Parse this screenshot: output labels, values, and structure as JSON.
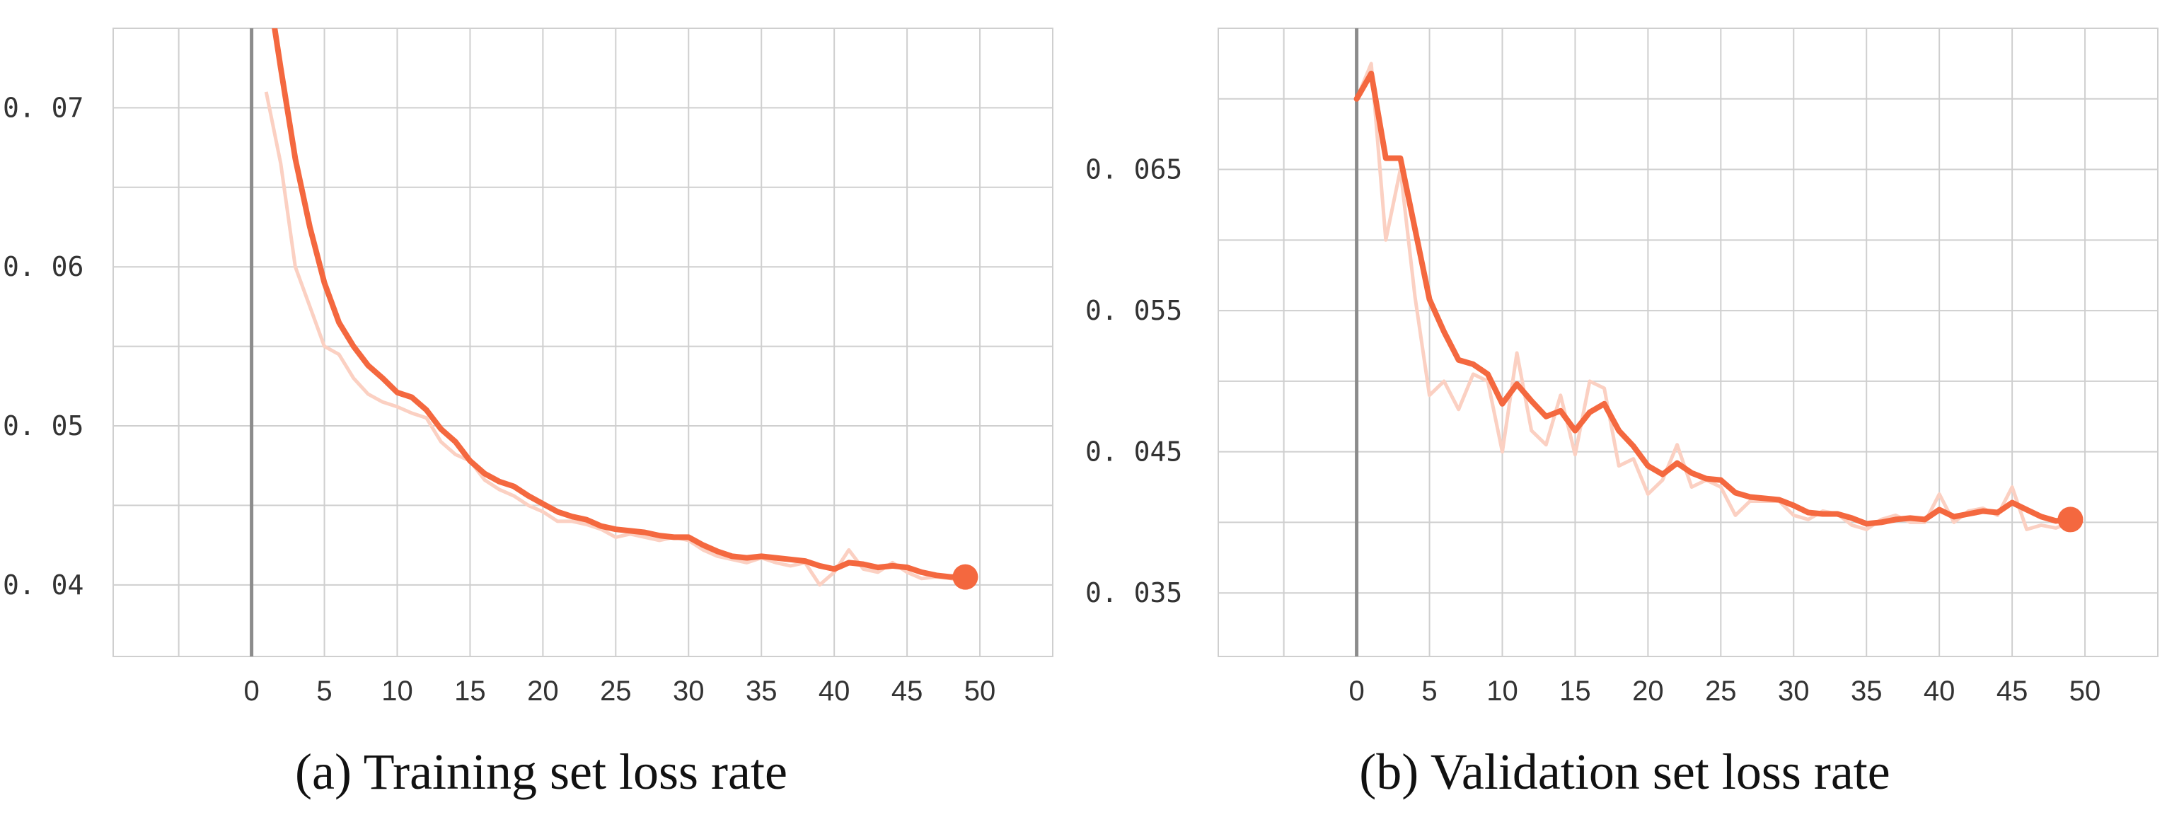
{
  "chart_data": [
    {
      "type": "line",
      "caption": "(a) Training set loss rate",
      "title": "",
      "xlabel": "",
      "ylabel": "",
      "xlim": [
        -9.5,
        55
      ],
      "ylim": [
        0.0355,
        0.075
      ],
      "grid": true,
      "x_ticks": [
        0,
        5,
        10,
        15,
        20,
        25,
        30,
        35,
        40,
        45,
        50
      ],
      "x_tick_labels": [
        "0",
        "5",
        "10",
        "15",
        "20",
        "25",
        "30",
        "35",
        "40",
        "45",
        "50"
      ],
      "y_ticks": [
        0.04,
        0.05,
        0.06,
        0.07
      ],
      "y_tick_labels": [
        "0. 04",
        "0. 05",
        "0. 06",
        "0. 07"
      ],
      "colors": {
        "line": "#F4683F",
        "raw": "#FBD0C2",
        "grid": "#cfcfcf",
        "zero_axis": "#8c8c8c"
      },
      "series": [
        {
          "role": "smoothed",
          "x": [
            1.5,
            2,
            3,
            4,
            5,
            6,
            7,
            8,
            9,
            10,
            11,
            12,
            13,
            14,
            15,
            16,
            17,
            18,
            19,
            20,
            21,
            22,
            23,
            24,
            25,
            26,
            27,
            28,
            29,
            30,
            31,
            32,
            33,
            34,
            35,
            36,
            37,
            38,
            39,
            40,
            41,
            42,
            43,
            44,
            45,
            46,
            47,
            48,
            49
          ],
          "y": [
            0.0755,
            0.0725,
            0.0668,
            0.0625,
            0.059,
            0.0565,
            0.055,
            0.0538,
            0.053,
            0.0521,
            0.0518,
            0.051,
            0.0498,
            0.049,
            0.0478,
            0.047,
            0.0465,
            0.0462,
            0.0456,
            0.0451,
            0.0446,
            0.0443,
            0.0441,
            0.0437,
            0.0435,
            0.0434,
            0.0433,
            0.0431,
            0.043,
            0.043,
            0.0425,
            0.0421,
            0.0418,
            0.0417,
            0.0418,
            0.0417,
            0.0416,
            0.0415,
            0.0412,
            0.041,
            0.0414,
            0.0413,
            0.0411,
            0.0412,
            0.0411,
            0.0408,
            0.0406,
            0.0405,
            0.0405
          ]
        },
        {
          "role": "raw",
          "x": [
            1,
            2,
            3,
            4,
            5,
            6,
            7,
            8,
            9,
            10,
            11,
            12,
            13,
            14,
            15,
            16,
            17,
            18,
            19,
            20,
            21,
            22,
            23,
            24,
            25,
            26,
            27,
            28,
            29,
            30,
            31,
            32,
            33,
            34,
            35,
            36,
            37,
            38,
            39,
            40,
            41,
            42,
            43,
            44,
            45,
            46,
            47,
            48,
            49
          ],
          "y": [
            0.071,
            0.0665,
            0.06,
            0.0575,
            0.055,
            0.0545,
            0.053,
            0.052,
            0.0515,
            0.0512,
            0.0508,
            0.0505,
            0.049,
            0.0482,
            0.0478,
            0.0466,
            0.046,
            0.0456,
            0.045,
            0.0446,
            0.044,
            0.044,
            0.0438,
            0.0435,
            0.043,
            0.0432,
            0.043,
            0.0428,
            0.043,
            0.0428,
            0.0422,
            0.0418,
            0.0416,
            0.0414,
            0.0417,
            0.0414,
            0.0412,
            0.0414,
            0.04,
            0.0408,
            0.0422,
            0.041,
            0.0408,
            0.0414,
            0.0408,
            0.0404,
            0.0405,
            0.0404,
            0.0402
          ]
        }
      ],
      "end_marker": {
        "x": 49,
        "y": 0.0405
      }
    },
    {
      "type": "line",
      "caption": "(b) Validation set loss rate",
      "title": "",
      "xlabel": "",
      "ylabel": "",
      "xlim": [
        -9.5,
        55
      ],
      "ylim": [
        0.0305,
        0.075
      ],
      "grid": true,
      "x_ticks": [
        0,
        5,
        10,
        15,
        20,
        25,
        30,
        35,
        40,
        45,
        50
      ],
      "x_tick_labels": [
        "0",
        "5",
        "10",
        "15",
        "20",
        "25",
        "30",
        "35",
        "40",
        "45",
        "50"
      ],
      "y_ticks": [
        0.035,
        0.045,
        0.055,
        0.065
      ],
      "y_tick_labels": [
        "0. 035",
        "0. 045",
        "0. 055",
        "0. 065"
      ],
      "colors": {
        "line": "#F4683F",
        "raw": "#FBD0C2",
        "grid": "#cfcfcf",
        "zero_axis": "#8c8c8c"
      },
      "series": [
        {
          "role": "smoothed",
          "x": [
            0,
            1,
            2,
            3,
            4,
            5,
            6,
            7,
            8,
            9,
            10,
            11,
            12,
            13,
            14,
            15,
            16,
            17,
            18,
            19,
            20,
            21,
            22,
            23,
            24,
            25,
            26,
            27,
            28,
            29,
            30,
            31,
            32,
            33,
            34,
            35,
            36,
            37,
            38,
            39,
            40,
            41,
            42,
            43,
            44,
            45,
            46,
            47,
            48,
            49
          ],
          "y": [
            0.07,
            0.0718,
            0.0658,
            0.0658,
            0.0608,
            0.0558,
            0.0535,
            0.0515,
            0.0512,
            0.0505,
            0.0484,
            0.0498,
            0.0486,
            0.0475,
            0.0479,
            0.0465,
            0.0478,
            0.0484,
            0.0465,
            0.0454,
            0.044,
            0.0434,
            0.0442,
            0.0435,
            0.0431,
            0.043,
            0.0421,
            0.0418,
            0.0417,
            0.0416,
            0.0412,
            0.0407,
            0.0406,
            0.0406,
            0.0403,
            0.0399,
            0.04,
            0.0402,
            0.0403,
            0.0402,
            0.0409,
            0.0404,
            0.0406,
            0.0408,
            0.0407,
            0.0414,
            0.0409,
            0.0404,
            0.0401,
            0.0402
          ]
        },
        {
          "role": "raw",
          "x": [
            0,
            1,
            2,
            3,
            4,
            5,
            6,
            7,
            8,
            9,
            10,
            11,
            12,
            13,
            14,
            15,
            16,
            17,
            18,
            19,
            20,
            21,
            22,
            23,
            24,
            25,
            26,
            27,
            28,
            29,
            30,
            31,
            32,
            33,
            34,
            35,
            36,
            37,
            38,
            39,
            40,
            41,
            42,
            43,
            44,
            45,
            46,
            47,
            48,
            49
          ],
          "y": [
            0.07,
            0.0725,
            0.06,
            0.065,
            0.056,
            0.049,
            0.05,
            0.048,
            0.0505,
            0.05,
            0.045,
            0.052,
            0.0465,
            0.0455,
            0.049,
            0.0448,
            0.05,
            0.0495,
            0.044,
            0.0445,
            0.042,
            0.043,
            0.0455,
            0.0425,
            0.043,
            0.0425,
            0.0405,
            0.0415,
            0.0415,
            0.0415,
            0.0405,
            0.0402,
            0.0408,
            0.0406,
            0.0398,
            0.0395,
            0.0402,
            0.0405,
            0.04,
            0.04,
            0.042,
            0.04,
            0.0408,
            0.041,
            0.0405,
            0.0425,
            0.0395,
            0.0398,
            0.0396,
            0.04
          ]
        }
      ],
      "end_marker": {
        "x": 49,
        "y": 0.0402
      }
    }
  ]
}
